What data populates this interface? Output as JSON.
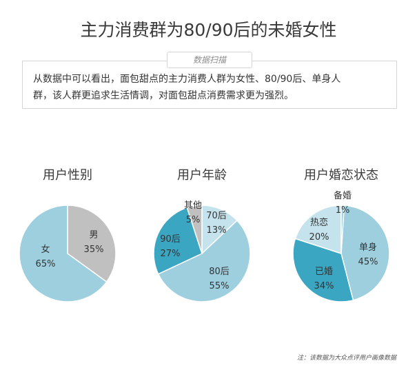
{
  "page": {
    "title": "主力消费群为80/90后的未婚女性",
    "info_tag": "数据扫描",
    "info_text_line1": "从数据中可以看出，面包甜点的主力消费人群为女性、80/90后、单身人",
    "info_text_line2": "群，该人群更追求生活情调，对面包甜点消费需求更为强烈。",
    "footnote": "注：该数据为大众点评用户画像数据"
  },
  "colors": {
    "light_blue": "#9dcfdf",
    "gray": "#c0c0c0",
    "teal": "#3aa6c2",
    "pale_blue": "#c4e3ec"
  },
  "chart_data": [
    {
      "type": "pie",
      "title": "用户性别",
      "slices": [
        {
          "label": "男",
          "value": 35,
          "value_text": "35%",
          "color": "#c0c0c0"
        },
        {
          "label": "女",
          "value": 65,
          "value_text": "65%",
          "color": "#9dcfdf"
        }
      ]
    },
    {
      "type": "pie",
      "title": "用户年龄",
      "slices": [
        {
          "label": "70后",
          "value": 13,
          "value_text": "13%",
          "color": "#c4e3ec"
        },
        {
          "label": "80后",
          "value": 55,
          "value_text": "55%",
          "color": "#9dcfdf"
        },
        {
          "label": "90后",
          "value": 27,
          "value_text": "27%",
          "color": "#3aa6c2"
        },
        {
          "label": "其他",
          "value": 5,
          "value_text": "5%",
          "color": "#c0c0c0"
        }
      ]
    },
    {
      "type": "pie",
      "title": "用户婚恋状态",
      "slices": [
        {
          "label": "单身",
          "value": 45,
          "value_text": "45%",
          "color": "#9dcfdf"
        },
        {
          "label": "已婚",
          "value": 34,
          "value_text": "34%",
          "color": "#3aa6c2"
        },
        {
          "label": "热恋",
          "value": 20,
          "value_text": "20%",
          "color": "#c4e3ec"
        },
        {
          "label": "备婚",
          "value": 1,
          "value_text": "1%",
          "color": "#9dcfdf"
        }
      ]
    }
  ]
}
